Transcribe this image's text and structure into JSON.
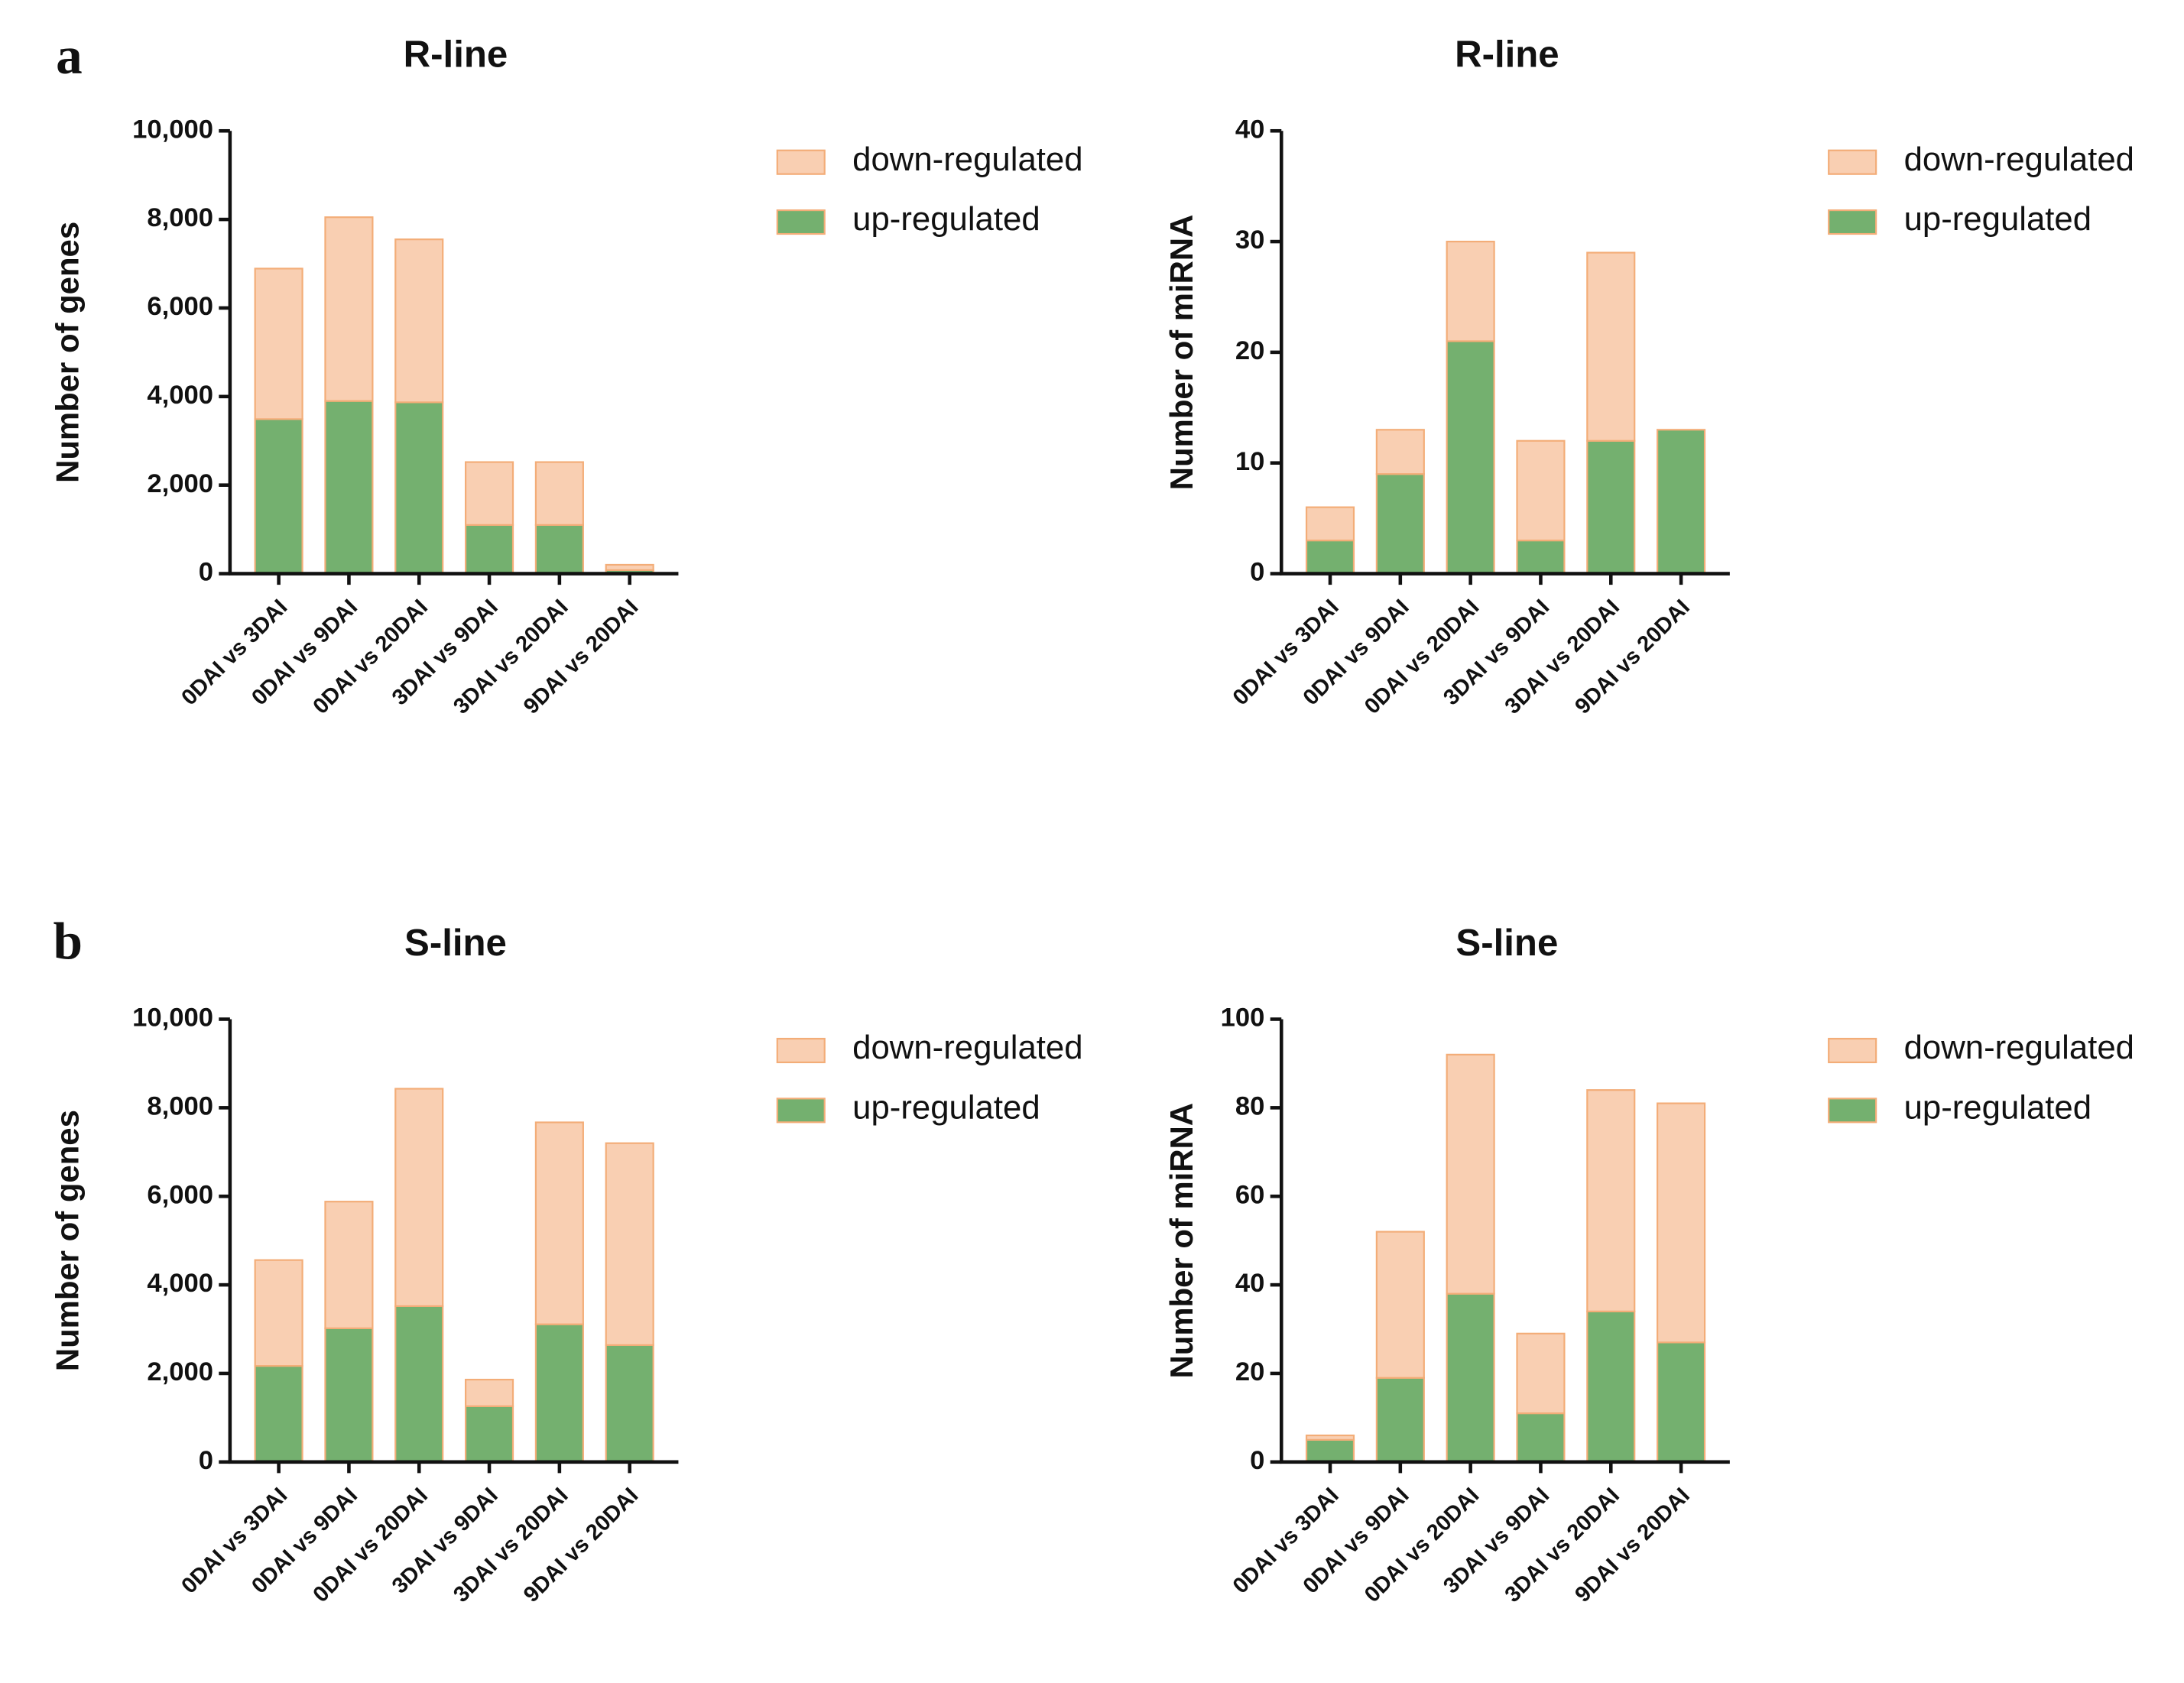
{
  "panels": [
    "a",
    "b"
  ],
  "chart_data": [
    {
      "type": "bar",
      "stacked": true,
      "title": "R-line",
      "y_label": "Number of genes",
      "categories": [
        "0DAI vs 3DAI",
        "0DAI vs 9DAI",
        "0DAI vs 20DAI",
        "3DAI vs 9DAI",
        "3DAI vs 20DAI",
        "9DAI vs 20DAI"
      ],
      "series": [
        {
          "name": "up-regulated",
          "color": "#74b06f",
          "values": [
            3490,
            3900,
            3870,
            1100,
            1100,
            80
          ]
        },
        {
          "name": "down-regulated",
          "color": "#f9cfb2",
          "values": [
            3400,
            4150,
            3680,
            1420,
            1420,
            120
          ]
        }
      ],
      "ylim": [
        0,
        10000
      ],
      "yticks": [
        0,
        {
          "value": 2000,
          "label": "2,000"
        },
        {
          "value": 4000,
          "label": "4,000"
        },
        {
          "value": 6000,
          "label": "6,000"
        },
        {
          "value": 8000,
          "label": "8,000"
        },
        {
          "value": 10000,
          "label": "10,000"
        }
      ]
    },
    {
      "type": "bar",
      "stacked": true,
      "title": "R-line",
      "y_label": "Number of miRNA",
      "categories": [
        "0DAI vs 3DAI",
        "0DAI vs 9DAI",
        "0DAI vs 20DAI",
        "3DAI vs 9DAI",
        "3DAI vs 20DAI",
        "9DAI vs 20DAI"
      ],
      "series": [
        {
          "name": "up-regulated",
          "color": "#74b06f",
          "values": [
            3,
            9,
            21,
            3,
            12,
            13
          ]
        },
        {
          "name": "down-regulated",
          "color": "#f9cfb2",
          "values": [
            3,
            4,
            9,
            9,
            17,
            0
          ]
        }
      ],
      "ylim": [
        0,
        40
      ],
      "yticks": [
        0,
        10,
        20,
        30,
        40
      ]
    },
    {
      "type": "bar",
      "stacked": true,
      "title": "S-line",
      "y_label": "Number of genes",
      "categories": [
        "0DAI vs 3DAI",
        "0DAI vs 9DAI",
        "0DAI vs 20DAI",
        "3DAI vs 9DAI",
        "3DAI vs 20DAI",
        "9DAI vs 20DAI"
      ],
      "series": [
        {
          "name": "up-regulated",
          "color": "#74b06f",
          "values": [
            2170,
            3020,
            3520,
            1260,
            3110,
            2640
          ]
        },
        {
          "name": "down-regulated",
          "color": "#f9cfb2",
          "values": [
            2390,
            2860,
            4910,
            600,
            4560,
            4560
          ]
        }
      ],
      "ylim": [
        0,
        10000
      ],
      "yticks": [
        0,
        {
          "value": 2000,
          "label": "2,000"
        },
        {
          "value": 4000,
          "label": "4,000"
        },
        {
          "value": 6000,
          "label": "6,000"
        },
        {
          "value": 8000,
          "label": "8,000"
        },
        {
          "value": 10000,
          "label": "10,000"
        }
      ]
    },
    {
      "type": "bar",
      "stacked": true,
      "title": "S-line",
      "y_label": "Number of miRNA",
      "categories": [
        "0DAI vs 3DAI",
        "0DAI vs 9DAI",
        "0DAI vs 20DAI",
        "3DAI vs 9DAI",
        "3DAI vs 20DAI",
        "9DAI vs 20DAI"
      ],
      "series": [
        {
          "name": "up-regulated",
          "color": "#74b06f",
          "values": [
            5,
            19,
            38,
            11,
            34,
            27
          ]
        },
        {
          "name": "down-regulated",
          "color": "#f9cfb2",
          "values": [
            1,
            33,
            54,
            18,
            50,
            54
          ]
        }
      ],
      "ylim": [
        0,
        100
      ],
      "yticks": [
        0,
        20,
        40,
        60,
        80,
        100
      ]
    }
  ]
}
